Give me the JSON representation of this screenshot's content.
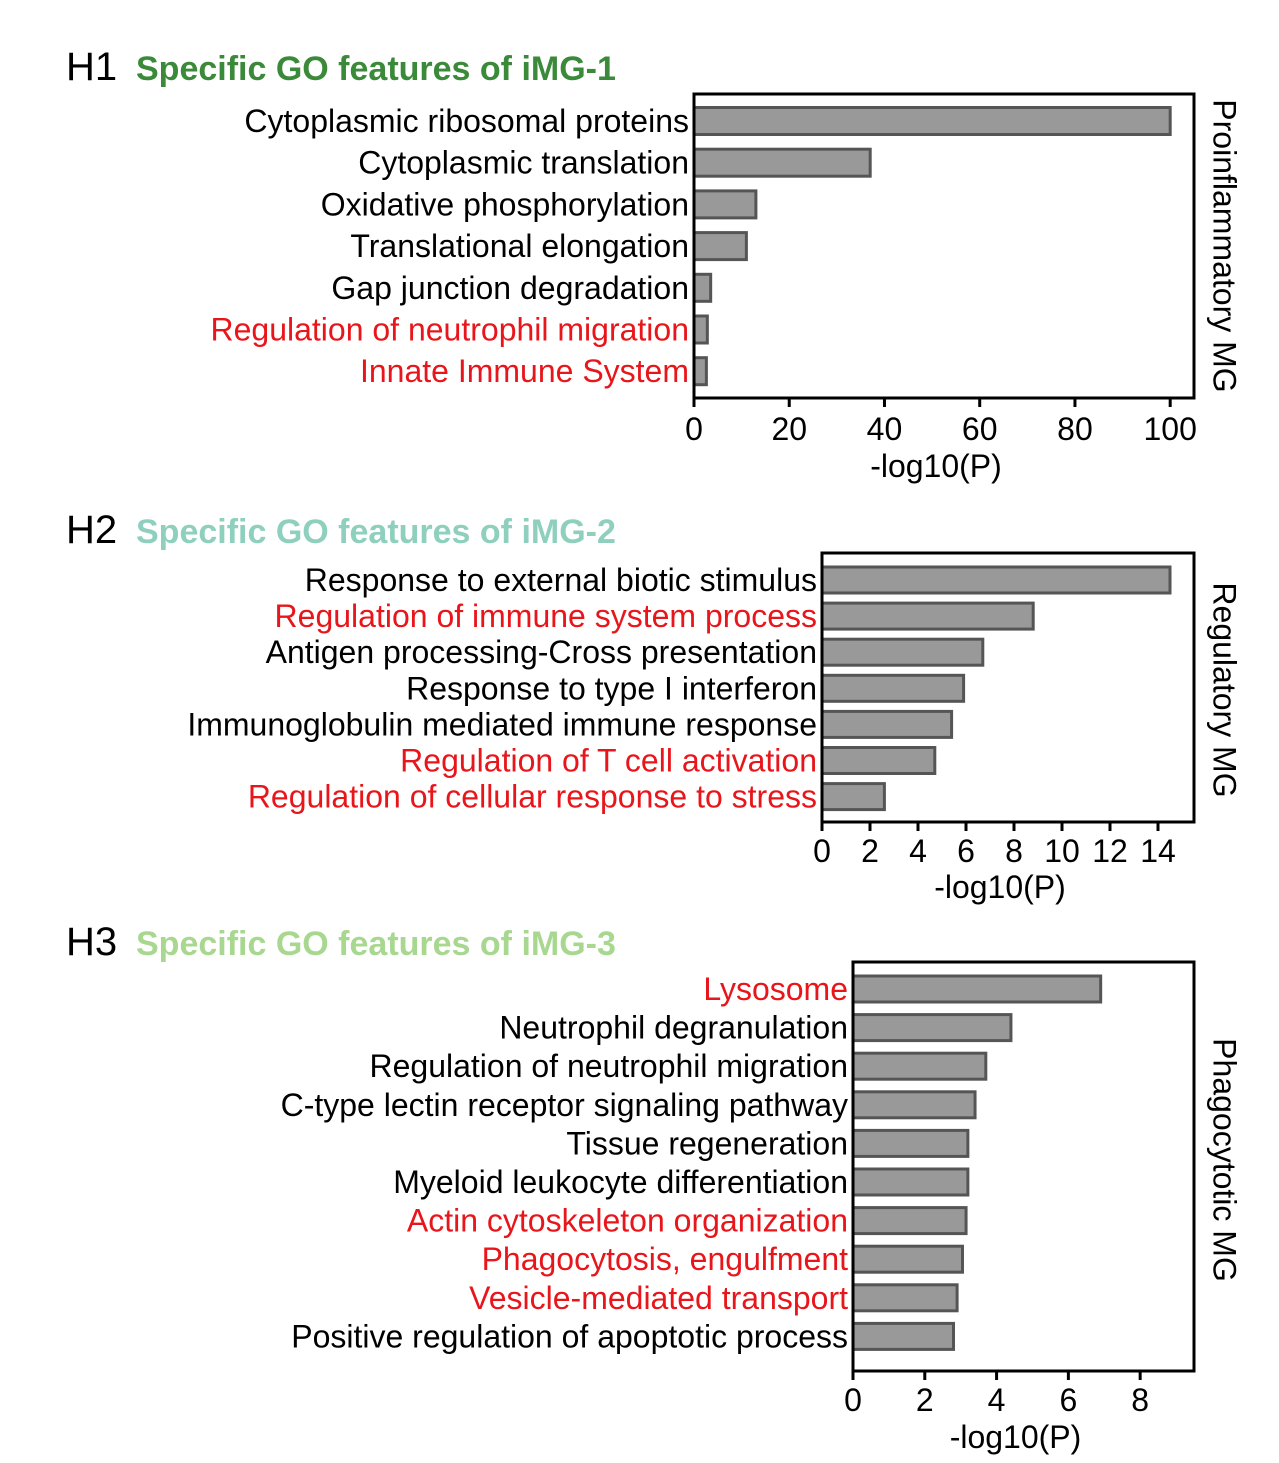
{
  "colors": {
    "bar_fill": "#999999",
    "bar_stroke": "#555555",
    "highlight_label": "#e8161b",
    "normal_label": "#000000"
  },
  "chart_data": [
    {
      "type": "bar",
      "orientation": "horizontal",
      "panel": "H1",
      "title": "Specific GO features of iMG-1",
      "title_color": "#3a8a3a",
      "side_label": "Proinflammatory MG",
      "xlabel": "-log10(P)",
      "xlim": [
        0,
        105
      ],
      "xticks": [
        0,
        20,
        40,
        60,
        80,
        100
      ],
      "grid": false,
      "categories": [
        "Cytoplasmic ribosomal proteins",
        "Cytoplasmic translation",
        "Oxidative phosphorylation",
        "Translational elongation",
        "Gap junction degradation",
        "Regulation of neutrophil migration",
        "Innate Immune System"
      ],
      "values": [
        100,
        37,
        13,
        11,
        3.5,
        2.8,
        2.6
      ],
      "highlighted": [
        false,
        false,
        false,
        false,
        false,
        true,
        true
      ]
    },
    {
      "type": "bar",
      "orientation": "horizontal",
      "panel": "H2",
      "title": "Specific GO features of iMG-2",
      "title_color": "#8ecfbe",
      "side_label": "Regulatory MG",
      "xlabel": "-log10(P)",
      "xlim": [
        0,
        15.5
      ],
      "xticks": [
        0,
        2,
        4,
        6,
        8,
        10,
        12,
        14
      ],
      "grid": false,
      "categories": [
        "Response to external biotic stimulus",
        "Regulation of immune system process",
        "Antigen processing-Cross presentation",
        "Response to type I interferon",
        "Immunoglobulin mediated immune response",
        "Regulation of T cell activation",
        "Regulation of cellular response to stress"
      ],
      "values": [
        14.5,
        8.8,
        6.7,
        5.9,
        5.4,
        4.7,
        2.6
      ],
      "highlighted": [
        false,
        true,
        false,
        false,
        false,
        true,
        true
      ]
    },
    {
      "type": "bar",
      "orientation": "horizontal",
      "panel": "H3",
      "title": "Specific GO features of iMG-3",
      "title_color": "#a8d890",
      "side_label": "Phagocytotic MG",
      "xlabel": "-log10(P)",
      "xlim": [
        0,
        9.5
      ],
      "xticks": [
        0,
        2,
        4,
        6,
        8
      ],
      "grid": false,
      "categories": [
        "Lysosome",
        "Neutrophil degranulation",
        "Regulation of neutrophil migration",
        "C-type lectin receptor signaling pathway",
        "Tissue regeneration",
        "Myeloid leukocyte differentiation",
        "Actin cytoskeleton organization",
        "Phagocytosis, engulfment",
        "Vesicle-mediated transport",
        "Positive regulation of apoptotic process"
      ],
      "values": [
        6.9,
        4.4,
        3.7,
        3.4,
        3.2,
        3.2,
        3.15,
        3.05,
        2.9,
        2.8
      ],
      "highlighted": [
        true,
        false,
        false,
        false,
        false,
        false,
        true,
        true,
        true,
        false
      ]
    }
  ]
}
